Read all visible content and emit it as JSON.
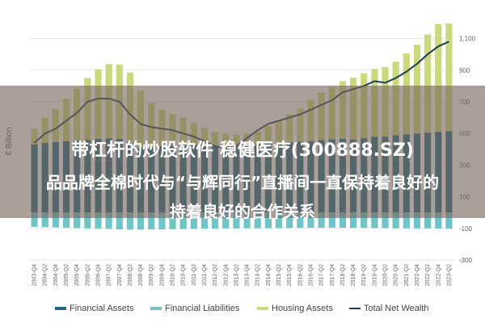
{
  "chart_data": {
    "type": "bar",
    "ylabel": "€ Billion",
    "ylim": [
      -300,
      1200
    ],
    "yticks": [
      -300,
      -100,
      100,
      300,
      500,
      700,
      900,
      1100
    ],
    "ytick_labels": [
      "-300",
      "-100",
      "100",
      "300",
      "500",
      "700",
      "900",
      "1,100"
    ],
    "categories": [
      "2003-Q4",
      "2004-Q2",
      "2004-Q4",
      "2005-Q2",
      "2005-Q4",
      "2006-Q2",
      "2006-Q4",
      "2007-Q2",
      "2007-Q4",
      "2008-Q2",
      "2008-Q4",
      "2009-Q2",
      "2009-Q4",
      "2010-Q2",
      "2010-Q4",
      "2011-Q2",
      "2011-Q4",
      "2012-Q2",
      "2012-Q4",
      "2013-Q2",
      "2013-Q4",
      "2014-Q2",
      "2014-Q4",
      "2015-Q2",
      "2015-Q4",
      "2016-Q2",
      "2016-Q4",
      "2017-Q2",
      "2017-Q4",
      "2018-Q2",
      "2018-Q4",
      "2019-Q2",
      "2019-Q4",
      "2020-Q2",
      "2020-Q4",
      "2021-Q2",
      "2021-Q4",
      "2022-Q2",
      "2022-Q4",
      "2023-Q2"
    ],
    "series": [
      {
        "name": "Financial Assets",
        "color": "#1f6b87",
        "values": [
          430,
          440,
          445,
          450,
          455,
          460,
          465,
          468,
          465,
          440,
          410,
          415,
          420,
          425,
          428,
          425,
          420,
          418,
          420,
          422,
          425,
          430,
          435,
          440,
          445,
          448,
          452,
          458,
          463,
          465,
          462,
          470,
          478,
          480,
          488,
          495,
          500,
          505,
          510,
          515
        ]
      },
      {
        "name": "Financial Liabilities",
        "color": "#6cc5c6",
        "values": [
          -90,
          -92,
          -94,
          -96,
          -98,
          -100,
          -102,
          -104,
          -106,
          -108,
          -108,
          -107,
          -106,
          -105,
          -104,
          -103,
          -102,
          -101,
          -100,
          -100,
          -99,
          -99,
          -98,
          -98,
          -97,
          -97,
          -96,
          -96,
          -96,
          -96,
          -97,
          -97,
          -98,
          -98,
          -99,
          -99,
          -100,
          -100,
          -101,
          -101
        ]
      },
      {
        "name": "Housing Assets",
        "color": "#cbd97a",
        "values": [
          100,
          160,
          210,
          270,
          330,
          390,
          440,
          470,
          470,
          445,
          360,
          280,
          230,
          195,
          170,
          140,
          115,
          90,
          75,
          70,
          72,
          80,
          110,
          140,
          175,
          210,
          260,
          300,
          330,
          365,
          390,
          410,
          430,
          440,
          465,
          510,
          560,
          620,
          680,
          680
        ]
      },
      {
        "name": "Total Net Wealth",
        "color": "#1d3d5a",
        "values": [
          440,
          500,
          530,
          580,
          630,
          700,
          720,
          720,
          700,
          620,
          560,
          540,
          530,
          520,
          500,
          480,
          450,
          420,
          405,
          420,
          470,
          520,
          560,
          580,
          600,
          620,
          650,
          680,
          710,
          760,
          780,
          800,
          830,
          820,
          850,
          890,
          940,
          1000,
          1050,
          1080
        ]
      }
    ],
    "legend_position": "bottom",
    "grid": true
  },
  "overlay": {
    "line1": "带杠杆的炒股软件 稳健医疗(300888.SZ)",
    "line2": "品品牌全棉时代与“与辉同行”直播间一直保持着良好的",
    "line3": "持着良好的合作关系"
  }
}
